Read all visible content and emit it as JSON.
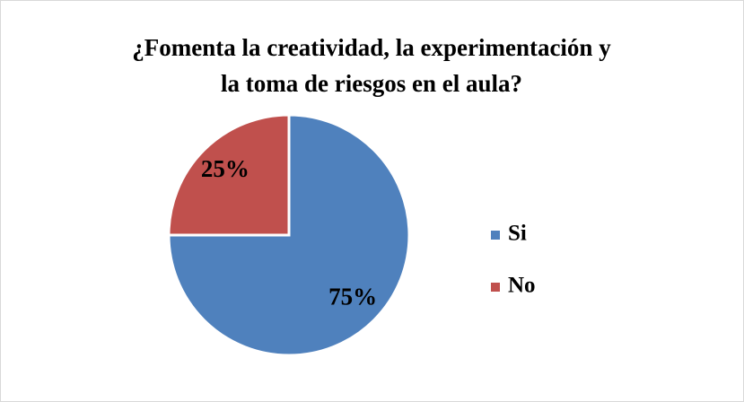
{
  "chart_data": {
    "type": "pie",
    "title": [
      "¿Fomenta la creatividad, la experimentación y",
      "la toma de riesgos en el aula?"
    ],
    "categories": [
      "Si",
      "No"
    ],
    "values": [
      75,
      25
    ],
    "value_labels": [
      "75%",
      "25%"
    ],
    "colors": [
      "#4f81bd",
      "#c0504d"
    ],
    "legend": "right"
  }
}
